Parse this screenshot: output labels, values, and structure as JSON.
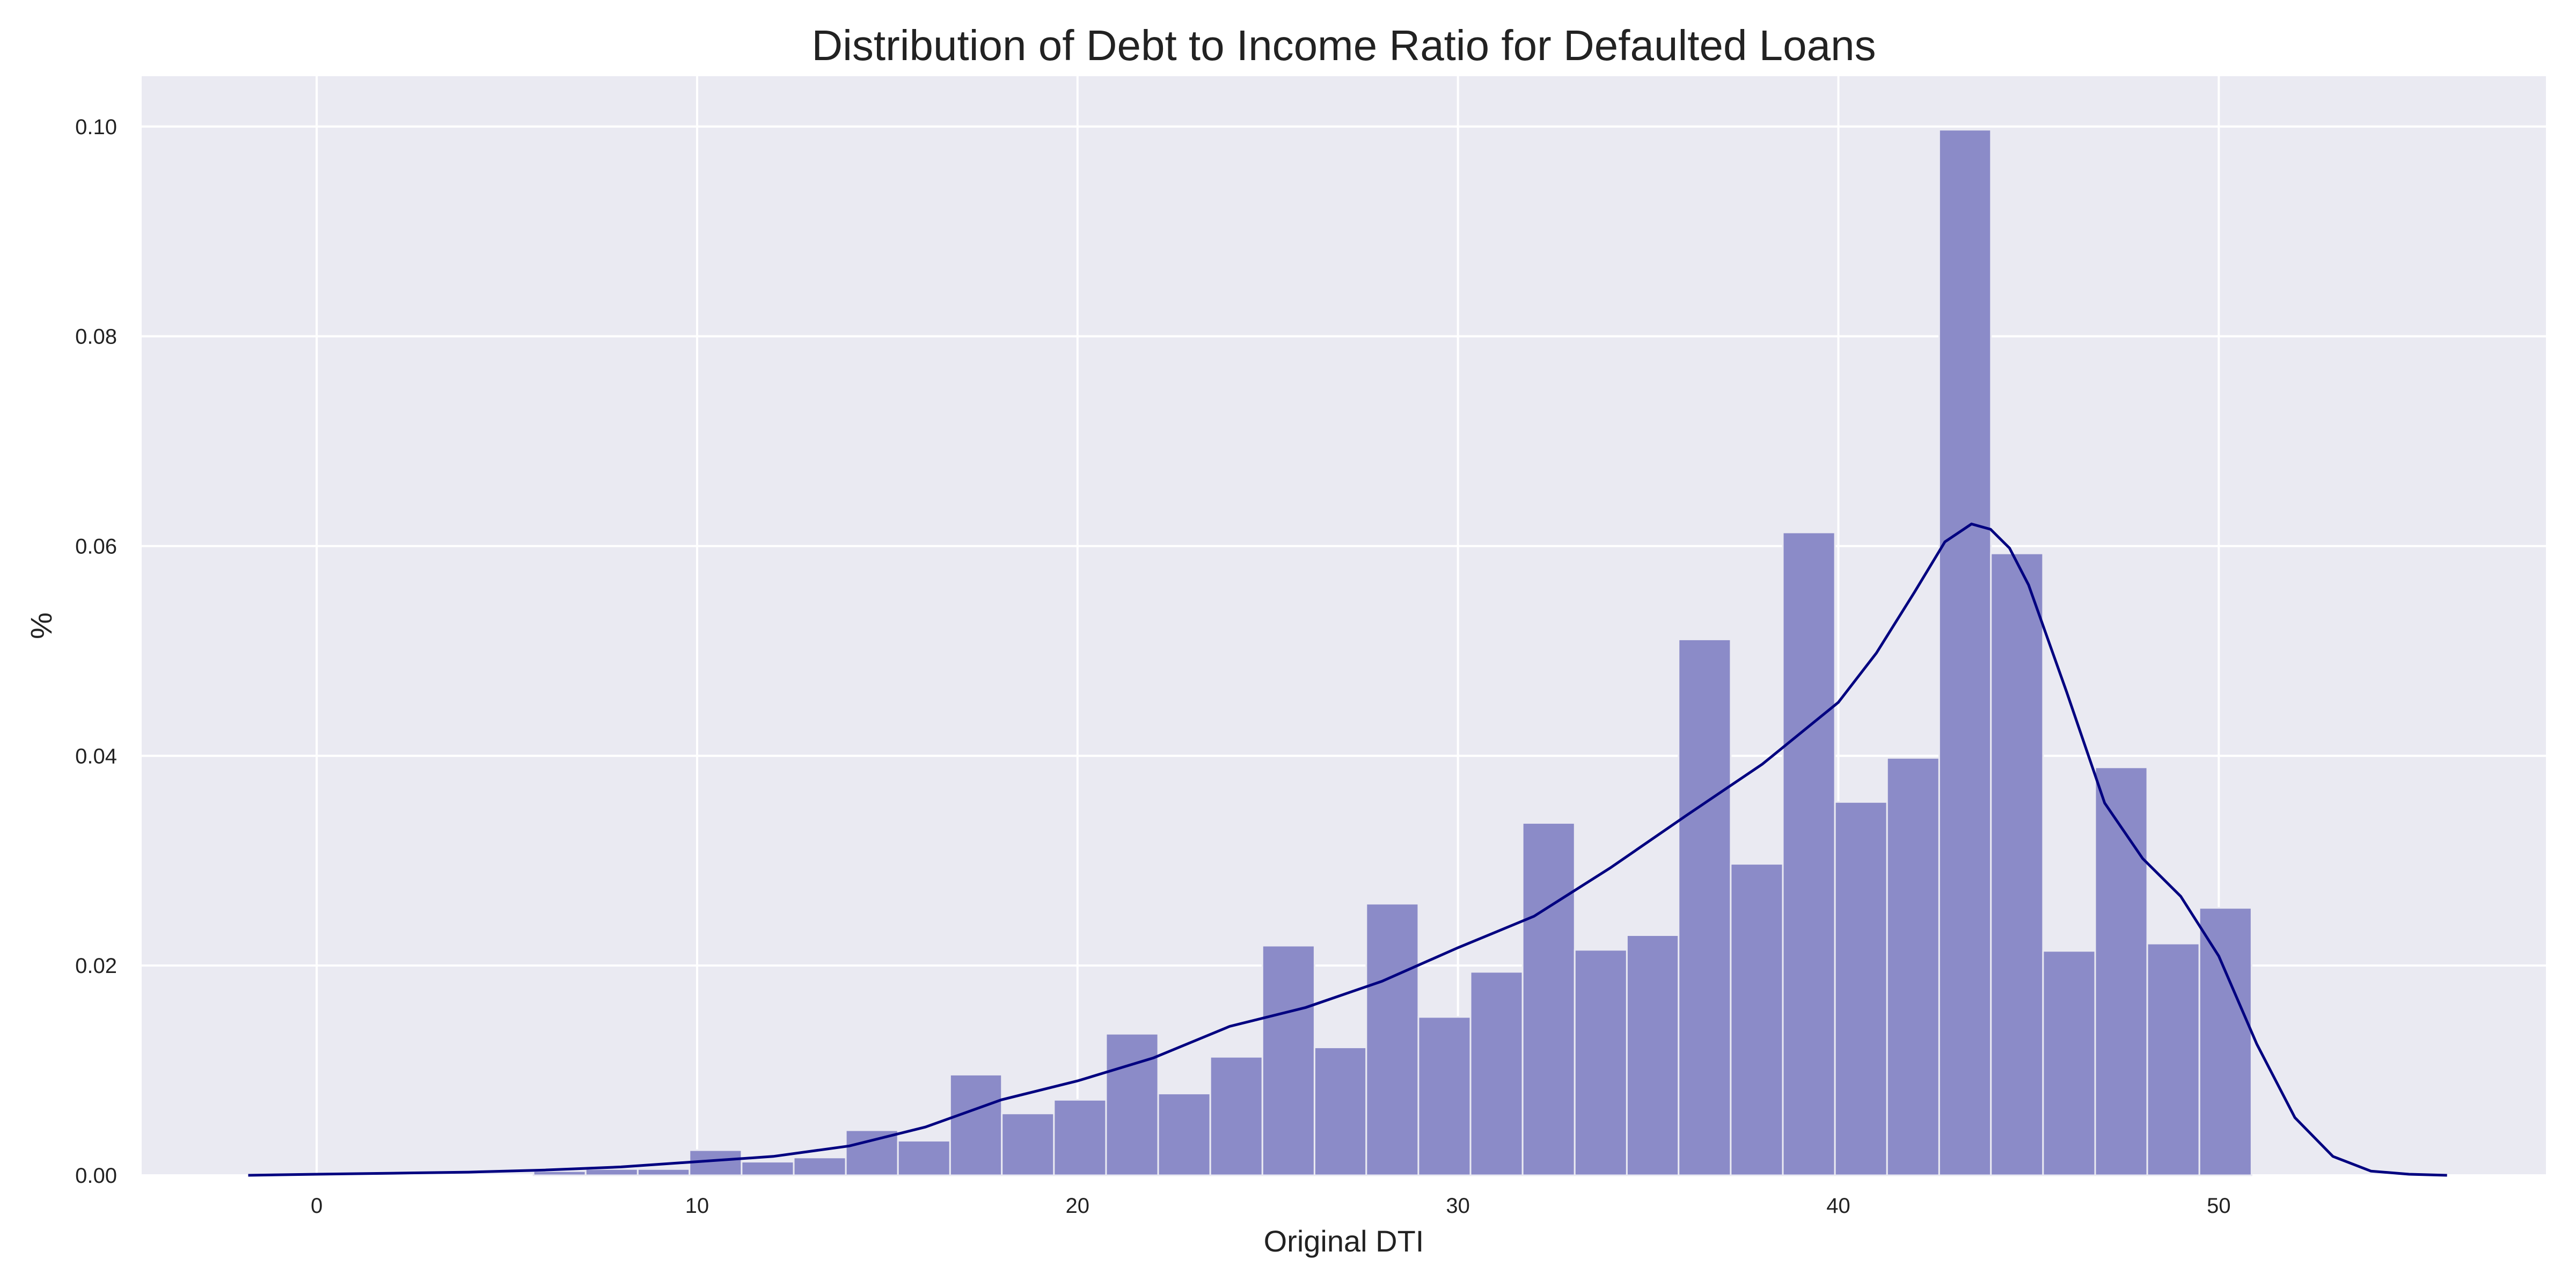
{
  "chart_data": {
    "type": "bar",
    "title": "Distribution of Debt to Income Ratio for Defaulted Loans",
    "xlabel": "Original DTI",
    "ylabel": "%",
    "xlim": [
      -4.6,
      58.6
    ],
    "ylim": [
      0,
      0.1048
    ],
    "xticks": [
      0,
      10,
      20,
      30,
      40,
      50
    ],
    "xtick_labels": [
      "0",
      "10",
      "20",
      "30",
      "40",
      "50"
    ],
    "yticks": [
      0.0,
      0.02,
      0.04,
      0.06,
      0.08,
      0.1
    ],
    "ytick_labels": [
      "0.00",
      "0.02",
      "0.04",
      "0.06",
      "0.08",
      "0.10"
    ],
    "grid": true,
    "bin_edges": [
      5.7,
      7.07,
      8.44,
      9.8,
      11.17,
      12.54,
      13.91,
      15.28,
      16.65,
      18.01,
      19.38,
      20.75,
      22.12,
      23.49,
      24.86,
      26.23,
      27.59,
      28.96,
      30.33,
      31.7,
      33.07,
      34.44,
      35.8,
      37.17,
      38.54,
      39.91,
      41.28,
      42.65,
      44.01,
      45.38,
      46.75,
      48.12,
      49.49,
      50.86
    ],
    "bar_values": [
      0.0004,
      0.0006,
      0.0006,
      0.0024,
      0.0013,
      0.0017,
      0.0043,
      0.0033,
      0.0096,
      0.0059,
      0.0072,
      0.0135,
      0.0078,
      0.0113,
      0.0219,
      0.0122,
      0.0259,
      0.0151,
      0.0194,
      0.0336,
      0.0215,
      0.0229,
      0.0511,
      0.0297,
      0.0613,
      0.0356,
      0.0398,
      0.0997,
      0.0593,
      0.0214,
      0.0389,
      0.0221,
      0.0255
    ],
    "kde": {
      "x": [
        -1.8,
        0,
        2,
        4,
        6,
        8,
        10,
        12,
        14,
        16,
        18,
        20,
        22,
        24,
        26,
        28,
        30,
        32,
        34,
        36,
        38,
        40,
        41,
        42,
        42.8,
        43.5,
        44,
        44.5,
        45,
        46,
        47,
        48,
        49,
        50,
        51,
        52,
        53,
        54,
        55,
        56
      ],
      "y": [
        0.0,
        0.0001,
        0.0002,
        0.0003,
        0.0005,
        0.0008,
        0.0013,
        0.0018,
        0.0028,
        0.0046,
        0.0072,
        0.009,
        0.0112,
        0.0142,
        0.016,
        0.0185,
        0.0217,
        0.0247,
        0.0293,
        0.0343,
        0.0392,
        0.0451,
        0.0498,
        0.0556,
        0.0604,
        0.0621,
        0.0616,
        0.0598,
        0.0563,
        0.0461,
        0.0355,
        0.0302,
        0.0266,
        0.0209,
        0.0125,
        0.0055,
        0.0018,
        0.0004,
        0.0001,
        0.0
      ]
    },
    "colors": {
      "background": "#eaeaf2",
      "bar": "#8b8bc8",
      "kde_line": "#000080",
      "grid": "#ffffff"
    }
  }
}
